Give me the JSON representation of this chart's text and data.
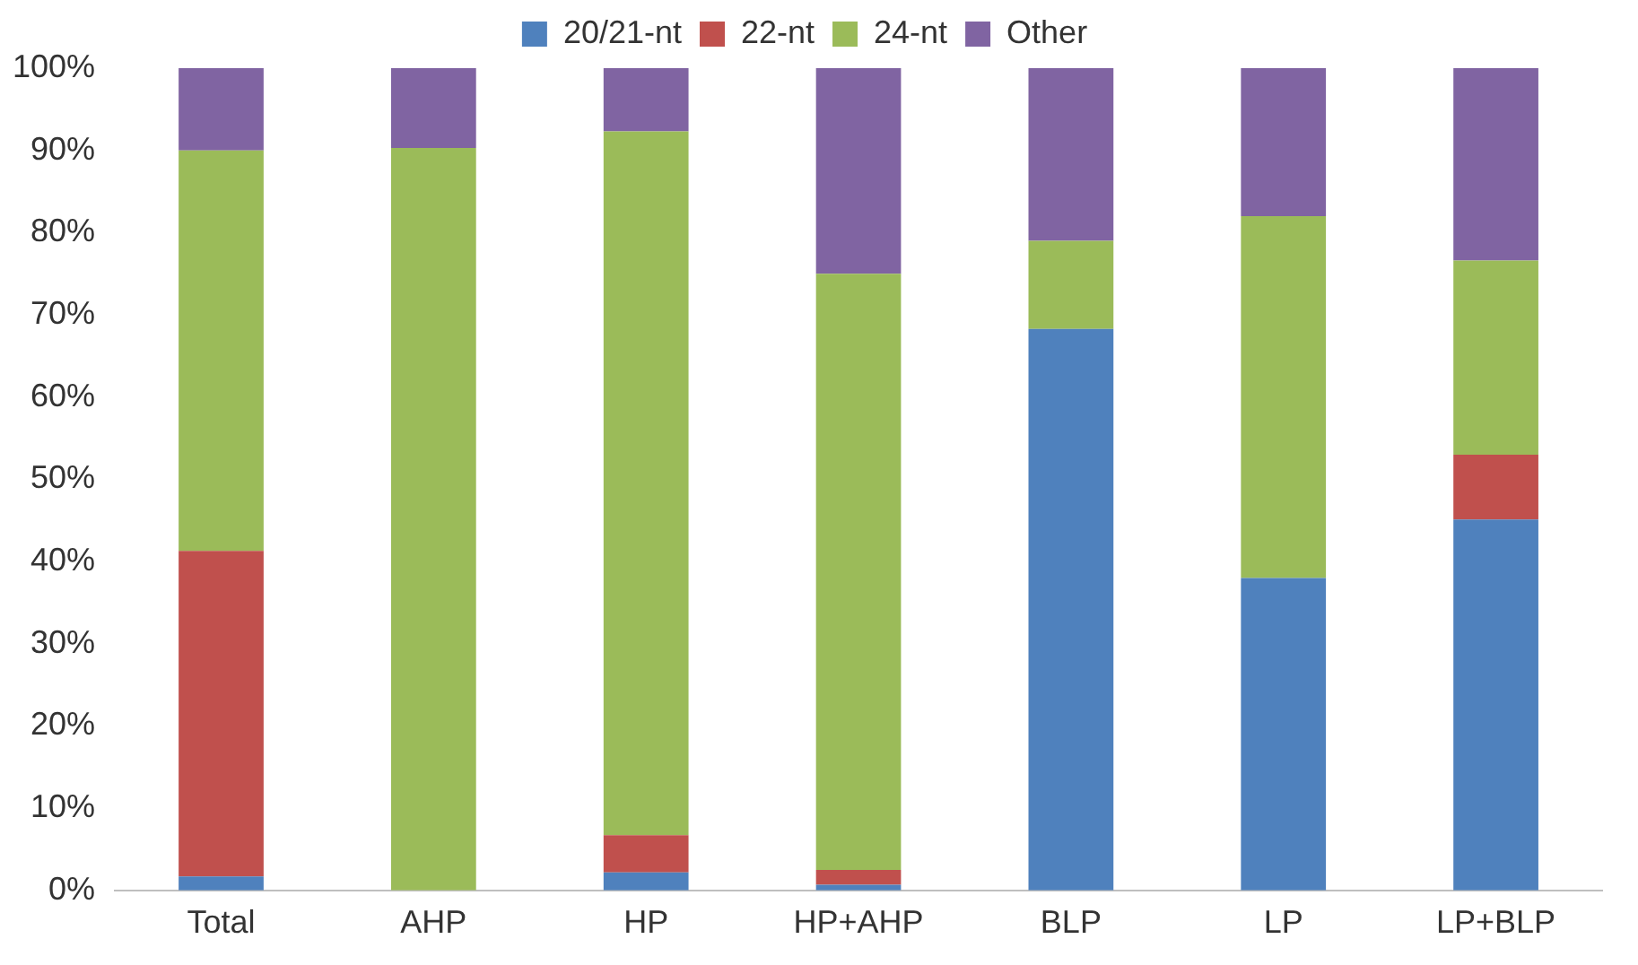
{
  "chart_data": {
    "type": "bar",
    "stacked": true,
    "legend": "top",
    "grid": false,
    "categories": [
      "Total",
      "AHP",
      "HP",
      "HP+AHP",
      "BLP",
      "LP",
      "LP+BLP"
    ],
    "ylim": [
      0,
      100
    ],
    "yticks": [
      {
        "value": 0,
        "label": "0%"
      },
      {
        "value": 10,
        "label": "10%"
      },
      {
        "value": 20,
        "label": "20%"
      },
      {
        "value": 30,
        "label": "30%"
      },
      {
        "value": 40,
        "label": "40%"
      },
      {
        "value": 50,
        "label": "50%"
      },
      {
        "value": 60,
        "label": "60%"
      },
      {
        "value": 70,
        "label": "70%"
      },
      {
        "value": 80,
        "label": "80%"
      },
      {
        "value": 90,
        "label": "90%"
      },
      {
        "value": 100,
        "label": "100%"
      }
    ],
    "series": [
      {
        "name": "20/21-nt",
        "color": "#4f81bd",
        "values": [
          1.7,
          0,
          2.2,
          0.7,
          68.3,
          38,
          45.1
        ]
      },
      {
        "name": "22-nt",
        "color": "#c0504d",
        "values": [
          39.6,
          0,
          4.5,
          1.8,
          0,
          0,
          7.9
        ]
      },
      {
        "name": "24-nt",
        "color": "#9bbb59",
        "values": [
          48.7,
          90.3,
          85.6,
          72.5,
          10.7,
          44,
          23.6
        ]
      },
      {
        "name": "Other",
        "color": "#8064a2",
        "values": [
          10,
          9.7,
          7.7,
          25,
          21,
          18,
          23.4
        ]
      }
    ]
  }
}
